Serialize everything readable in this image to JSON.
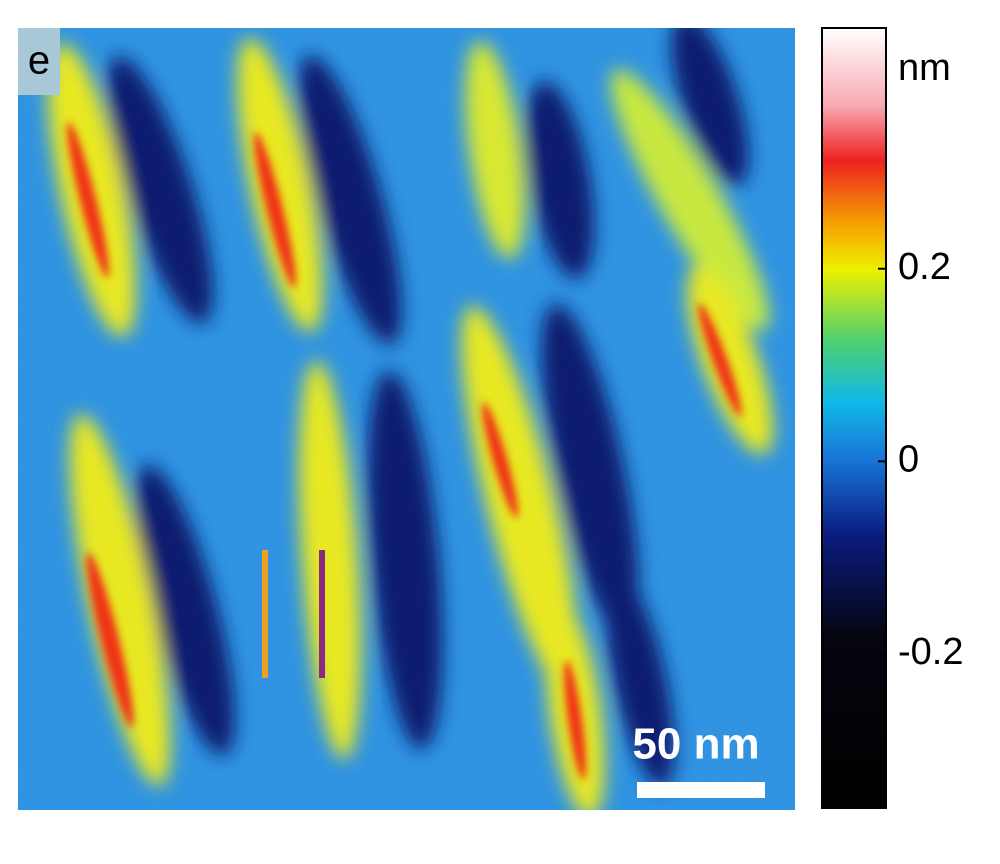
{
  "panel_label": "e",
  "scale_bar": {
    "label": "50 nm"
  },
  "colorbar": {
    "unit": "nm",
    "lim": [
      -0.36,
      0.45
    ],
    "ticks": [
      0.2,
      0,
      -0.2
    ]
  }
}
